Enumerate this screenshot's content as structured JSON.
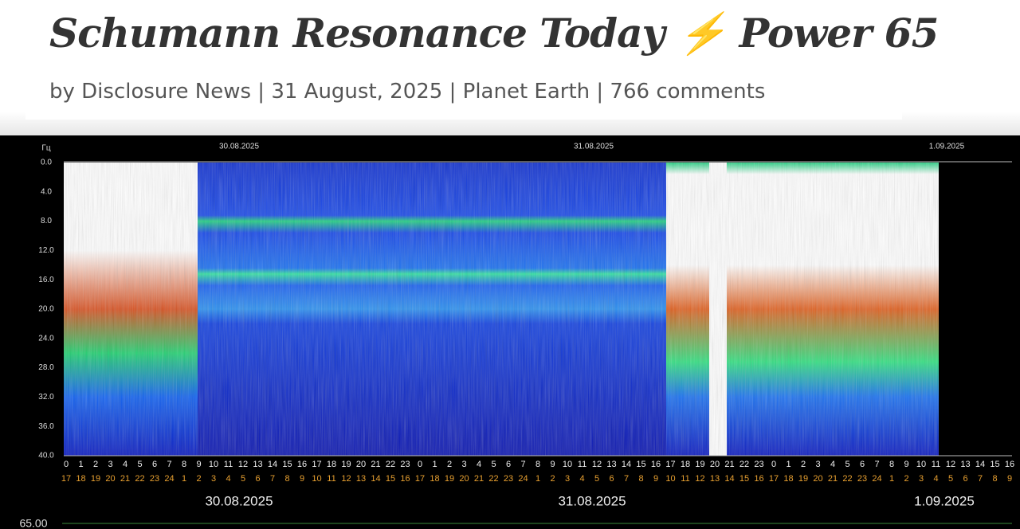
{
  "header": {
    "title": "Schumann Resonance Today ⚡ Power 65",
    "byline": "by Disclosure News | 31 August, 2025 | Planet Earth | 766 comments"
  },
  "spectrogram": {
    "unit": "Гц",
    "y_labels": [
      "0.0",
      "4.0",
      "8.0",
      "12.0",
      "16.0",
      "20.0",
      "24.0",
      "28.0",
      "32.0",
      "36.0",
      "40.0"
    ],
    "top_dates": [
      "30.08.2025",
      "31.08.2025",
      "1.09.2025"
    ],
    "hours_utc": [
      0,
      1,
      2,
      3,
      4,
      5,
      6,
      7,
      8,
      9,
      10,
      11,
      12,
      13,
      14,
      15,
      16,
      17,
      18,
      19,
      20,
      21,
      22,
      23,
      0,
      1,
      2,
      3,
      4,
      5,
      6,
      7,
      8,
      9,
      10,
      11,
      12,
      13,
      14,
      15,
      16,
      17,
      18,
      19,
      20,
      21,
      22,
      23,
      0,
      1,
      2,
      3,
      4,
      5,
      6,
      7,
      8,
      9,
      10,
      11,
      12,
      13,
      14,
      15,
      16
    ],
    "hours_local": [
      17,
      18,
      19,
      20,
      21,
      22,
      23,
      24,
      1,
      2,
      3,
      4,
      5,
      6,
      7,
      8,
      9,
      10,
      11,
      12,
      13,
      14,
      15,
      16,
      17,
      18,
      19,
      20,
      21,
      22,
      23,
      24,
      1,
      2,
      3,
      4,
      5,
      6,
      7,
      8,
      9,
      10,
      11,
      12,
      13,
      14,
      15,
      16,
      17,
      18,
      19,
      20,
      21,
      22,
      23,
      24,
      1,
      2,
      3,
      4,
      5,
      6,
      7,
      8,
      9
    ],
    "bottom_dates": [
      "30.08.2025",
      "31.08.2025",
      "1.09.2025"
    ],
    "power_label": "65.00"
  }
}
